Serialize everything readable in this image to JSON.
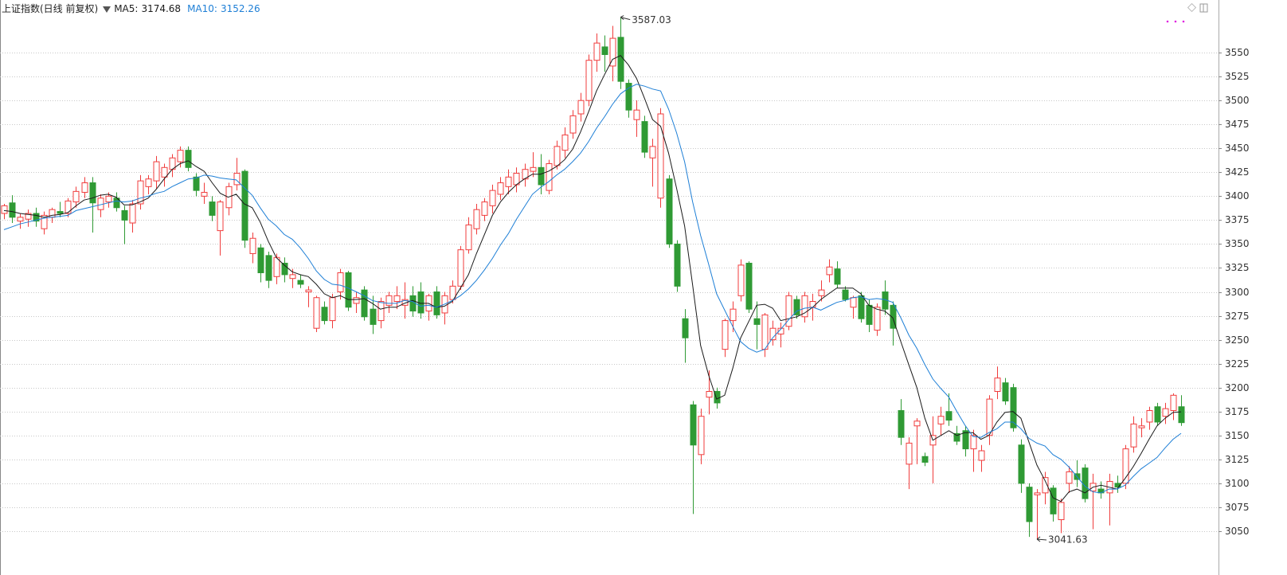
{
  "chart_data": {
    "type": "candlestick",
    "title": "上证指数(日线 前复权)",
    "open": [
      3382,
      3393,
      3374,
      3376,
      3382,
      3366,
      3378,
      3384,
      3382,
      3394,
      3404,
      3414,
      3386,
      3394,
      3398,
      3385,
      3372,
      3392,
      3410,
      3416,
      3420,
      3428,
      3436,
      3448,
      3420,
      3400,
      3394,
      3364,
      3388,
      3412,
      3426,
      3340,
      3346,
      3338,
      3316,
      3330,
      3314,
      3312,
      3300,
      3262,
      3284,
      3270,
      3300,
      3320,
      3288,
      3302,
      3282,
      3270,
      3286,
      3290,
      3286,
      3296,
      3300,
      3280,
      3300,
      3278,
      3292,
      3306,
      3344,
      3366,
      3380,
      3390,
      3402,
      3410,
      3412,
      3418,
      3426,
      3430,
      3406,
      3432,
      3448,
      3466,
      3486,
      3500,
      3542,
      3556,
      3536,
      3566,
      3518,
      3480,
      3478,
      3440,
      3398,
      3418,
      3350,
      3272,
      3182,
      3130,
      3190,
      3196,
      3240,
      3270,
      3296,
      3330,
      3272,
      3240,
      3250,
      3256,
      3264,
      3292,
      3274,
      3284,
      3296,
      3318,
      3324,
      3302,
      3284,
      3296,
      3286,
      3260,
      3300,
      3286,
      3176,
      3120,
      3160,
      3128,
      3140,
      3162,
      3175,
      3152,
      3155,
      3136,
      3124,
      3150,
      3196,
      3205,
      3200,
      3140,
      3096,
      3088,
      3090,
      3095,
      3062,
      3100,
      3110,
      3116,
      3092,
      3094,
      3090,
      3100,
      3100,
      3138,
      3158,
      3164,
      3180,
      3170,
      3176,
      3180
    ],
    "high": [
      3392,
      3401,
      3382,
      3386,
      3388,
      3384,
      3388,
      3394,
      3398,
      3410,
      3420,
      3420,
      3402,
      3404,
      3404,
      3390,
      3396,
      3422,
      3422,
      3442,
      3434,
      3444,
      3452,
      3452,
      3424,
      3414,
      3400,
      3396,
      3414,
      3440,
      3428,
      3362,
      3350,
      3342,
      3340,
      3336,
      3324,
      3318,
      3306,
      3296,
      3290,
      3298,
      3324,
      3322,
      3300,
      3306,
      3296,
      3294,
      3300,
      3306,
      3310,
      3306,
      3310,
      3298,
      3306,
      3300,
      3312,
      3348,
      3378,
      3392,
      3398,
      3412,
      3420,
      3428,
      3430,
      3434,
      3446,
      3444,
      3438,
      3458,
      3472,
      3490,
      3508,
      3548,
      3570,
      3568,
      3578,
      3587.03,
      3522,
      3500,
      3484,
      3460,
      3492,
      3422,
      3354,
      3282,
      3186,
      3178,
      3218,
      3200,
      3272,
      3290,
      3334,
      3332,
      3290,
      3278,
      3270,
      3268,
      3300,
      3296,
      3300,
      3298,
      3312,
      3334,
      3332,
      3306,
      3296,
      3300,
      3292,
      3288,
      3312,
      3290,
      3188,
      3148,
      3168,
      3132,
      3170,
      3180,
      3194,
      3160,
      3160,
      3156,
      3140,
      3192,
      3222,
      3210,
      3204,
      3146,
      3100,
      3094,
      3112,
      3098,
      3084,
      3118,
      3124,
      3120,
      3110,
      3102,
      3110,
      3108,
      3140,
      3170,
      3168,
      3180,
      3184,
      3184,
      3194,
      3192
    ],
    "low": [
      3376,
      3372,
      3366,
      3368,
      3368,
      3360,
      3372,
      3378,
      3378,
      3388,
      3398,
      3362,
      3378,
      3388,
      3384,
      3350,
      3362,
      3386,
      3402,
      3408,
      3410,
      3420,
      3430,
      3426,
      3400,
      3392,
      3374,
      3338,
      3380,
      3406,
      3346,
      3330,
      3310,
      3304,
      3308,
      3310,
      3304,
      3304,
      3284,
      3258,
      3266,
      3262,
      3292,
      3280,
      3278,
      3270,
      3256,
      3262,
      3278,
      3282,
      3272,
      3274,
      3272,
      3270,
      3272,
      3266,
      3288,
      3302,
      3340,
      3360,
      3374,
      3382,
      3396,
      3402,
      3404,
      3410,
      3420,
      3402,
      3402,
      3428,
      3440,
      3460,
      3478,
      3494,
      3530,
      3530,
      3520,
      3512,
      3482,
      3462,
      3440,
      3410,
      3388,
      3346,
      3300,
      3226,
      3068,
      3120,
      3172,
      3178,
      3232,
      3258,
      3290,
      3278,
      3240,
      3232,
      3244,
      3242,
      3260,
      3272,
      3268,
      3270,
      3290,
      3310,
      3304,
      3290,
      3272,
      3268,
      3258,
      3254,
      3276,
      3244,
      3140,
      3094,
      3120,
      3118,
      3100,
      3150,
      3160,
      3140,
      3128,
      3112,
      3112,
      3140,
      3188,
      3182,
      3154,
      3090,
      3044,
      3041.63,
      3078,
      3060,
      3048,
      3090,
      3096,
      3080,
      3052,
      3084,
      3056,
      3090,
      3094,
      3132,
      3148,
      3156,
      3160,
      3162,
      3166,
      3160
    ],
    "close": [
      3390,
      3378,
      3378,
      3382,
      3374,
      3380,
      3386,
      3382,
      3395,
      3405,
      3414,
      3393,
      3398,
      3400,
      3388,
      3375,
      3392,
      3416,
      3418,
      3436,
      3430,
      3440,
      3448,
      3430,
      3406,
      3404,
      3380,
      3394,
      3410,
      3424,
      3354,
      3356,
      3320,
      3312,
      3336,
      3318,
      3318,
      3308,
      3302,
      3294,
      3270,
      3294,
      3320,
      3284,
      3294,
      3274,
      3266,
      3290,
      3296,
      3296,
      3292,
      3280,
      3278,
      3296,
      3276,
      3296,
      3306,
      3344,
      3370,
      3386,
      3394,
      3406,
      3414,
      3420,
      3424,
      3428,
      3430,
      3412,
      3434,
      3452,
      3464,
      3484,
      3500,
      3542,
      3560,
      3548,
      3565,
      3520,
      3490,
      3490,
      3446,
      3452,
      3486,
      3350,
      3306,
      3252,
      3140,
      3170,
      3196,
      3184,
      3270,
      3282,
      3328,
      3282,
      3266,
      3276,
      3262,
      3262,
      3296,
      3276,
      3296,
      3290,
      3302,
      3326,
      3308,
      3292,
      3294,
      3272,
      3266,
      3284,
      3282,
      3262,
      3148,
      3142,
      3165,
      3122,
      3150,
      3170,
      3166,
      3144,
      3136,
      3150,
      3134,
      3188,
      3210,
      3186,
      3158,
      3100,
      3060,
      3090,
      3106,
      3068,
      3080,
      3112,
      3104,
      3084,
      3100,
      3090,
      3102,
      3096,
      3136,
      3162,
      3160,
      3176,
      3164,
      3178,
      3192,
      3163.4
    ],
    "up_color": "#f03c3c",
    "down_color": "#2f9a34",
    "series": [
      {
        "name": "MA5",
        "color": "#1a1a1a",
        "values": [
          3385,
          3384,
          3382,
          3381,
          3380,
          3378,
          3380,
          3381,
          3383,
          3390,
          3396,
          3398,
          3401,
          3402,
          3399,
          3391,
          3391,
          3394,
          3398,
          3407,
          3418,
          3428,
          3434,
          3437,
          3431,
          3426,
          3414,
          3403,
          3399,
          3402,
          3392,
          3388,
          3373,
          3353,
          3336,
          3328,
          3321,
          3318,
          3316,
          3308,
          3298,
          3294,
          3296,
          3292,
          3292,
          3293,
          3288,
          3282,
          3284,
          3284,
          3288,
          3291,
          3288,
          3288,
          3284,
          3285,
          3290,
          3304,
          3318,
          3340,
          3360,
          3380,
          3394,
          3404,
          3412,
          3418,
          3423,
          3423,
          3426,
          3431,
          3438,
          3449,
          3467,
          3488,
          3510,
          3527,
          3543,
          3547,
          3537,
          3523,
          3502,
          3480,
          3473,
          3445,
          3408,
          3369,
          3307,
          3244,
          3213,
          3188,
          3192,
          3220,
          3252,
          3269,
          3286,
          3287,
          3283,
          3270,
          3272,
          3274,
          3278,
          3284,
          3292,
          3298,
          3304,
          3304,
          3304,
          3298,
          3286,
          3282,
          3280,
          3273,
          3248,
          3224,
          3200,
          3168,
          3145,
          3150,
          3155,
          3150,
          3153,
          3153,
          3146,
          3150,
          3164,
          3174,
          3175,
          3168,
          3143,
          3119,
          3103,
          3085,
          3081,
          3091,
          3094,
          3090,
          3096,
          3098,
          3096,
          3094,
          3105,
          3117,
          3131,
          3146,
          3160,
          3168,
          3174,
          3174.68
        ]
      },
      {
        "name": "MA10",
        "color": "#1e7fd6",
        "values": [
          3365,
          3368,
          3371,
          3373,
          3375,
          3377,
          3378,
          3379,
          3380,
          3385,
          3387,
          3389,
          3391,
          3393,
          3395,
          3394,
          3395,
          3398,
          3400,
          3403,
          3405,
          3410,
          3414,
          3418,
          3419,
          3422,
          3421,
          3419,
          3418,
          3417,
          3409,
          3401,
          3388,
          3376,
          3369,
          3360,
          3355,
          3346,
          3335,
          3322,
          3313,
          3308,
          3307,
          3304,
          3300,
          3296,
          3291,
          3289,
          3288,
          3288,
          3291,
          3290,
          3285,
          3286,
          3284,
          3287,
          3291,
          3296,
          3303,
          3312,
          3323,
          3335,
          3349,
          3361,
          3376,
          3389,
          3402,
          3409,
          3415,
          3422,
          3428,
          3436,
          3445,
          3457,
          3471,
          3483,
          3496,
          3507,
          3513,
          3517,
          3515,
          3512,
          3510,
          3491,
          3466,
          3436,
          3394,
          3359,
          3329,
          3298,
          3281,
          3264,
          3248,
          3241,
          3237,
          3240,
          3252,
          3261,
          3271,
          3280,
          3283,
          3284,
          3281,
          3285,
          3289,
          3291,
          3294,
          3295,
          3292,
          3293,
          3292,
          3289,
          3273,
          3255,
          3241,
          3224,
          3209,
          3199,
          3190,
          3175,
          3161,
          3149,
          3148,
          3153,
          3157,
          3164,
          3164,
          3157,
          3147,
          3142,
          3139,
          3130,
          3125,
          3117,
          3107,
          3097,
          3091,
          3090,
          3094,
          3094,
          3098,
          3107,
          3115,
          3121,
          3127,
          3137,
          3146,
          3152.26
        ]
      }
    ],
    "ylim": [
      3022.5,
      3605
    ],
    "yticks": [
      3050,
      3075,
      3100,
      3125,
      3150,
      3175,
      3200,
      3225,
      3250,
      3275,
      3300,
      3325,
      3350,
      3375,
      3400,
      3425,
      3450,
      3475,
      3500,
      3525,
      3550
    ],
    "grid": true
  }
}
